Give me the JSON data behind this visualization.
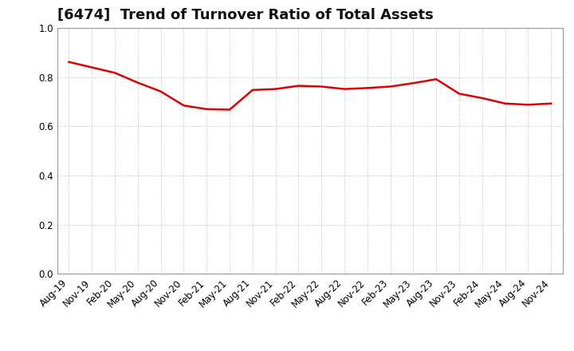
{
  "title": "[6474]  Trend of Turnover Ratio of Total Assets",
  "x_labels": [
    "Aug-19",
    "Nov-19",
    "Feb-20",
    "May-20",
    "Aug-20",
    "Nov-20",
    "Feb-21",
    "May-21",
    "Aug-21",
    "Nov-21",
    "Feb-22",
    "May-22",
    "Aug-22",
    "Nov-22",
    "Feb-23",
    "May-23",
    "Aug-23",
    "Nov-23",
    "Feb-24",
    "May-24",
    "Aug-24",
    "Nov-24"
  ],
  "y_values": [
    0.862,
    0.84,
    0.818,
    0.778,
    0.742,
    0.685,
    0.67,
    0.668,
    0.748,
    0.752,
    0.765,
    0.762,
    0.752,
    0.756,
    0.762,
    0.776,
    0.792,
    0.733,
    0.715,
    0.693,
    0.688,
    0.693
  ],
  "line_color": "#dd0000",
  "line_width": 1.8,
  "ylim": [
    0.0,
    1.0
  ],
  "yticks": [
    0.0,
    0.2,
    0.4,
    0.6,
    0.8,
    1.0
  ],
  "background_color": "#ffffff",
  "plot_bg_color": "#ffffff",
  "grid_color": "#bbbbbb",
  "title_fontsize": 13,
  "tick_fontsize": 8.5,
  "title_color": "#111111"
}
